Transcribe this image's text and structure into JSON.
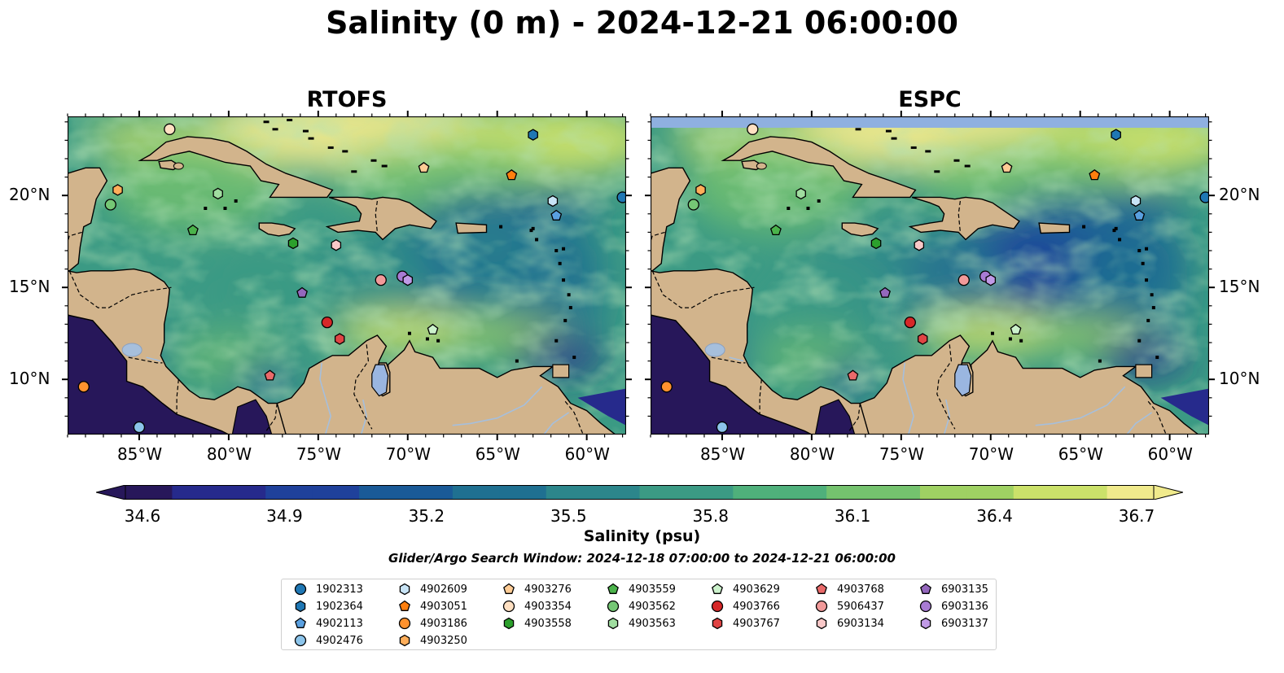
{
  "title": "Salinity (0 m) - 2024-12-21 06:00:00",
  "panels": [
    {
      "name": "RTOFS"
    },
    {
      "name": "ESPC"
    }
  ],
  "longitude_ticks": [
    "85°W",
    "80°W",
    "75°W",
    "70°W",
    "65°W",
    "60°W"
  ],
  "latitude_ticks": [
    "20°N",
    "15°N",
    "10°N"
  ],
  "colorbar": {
    "label": "Salinity (psu)",
    "ticks": [
      "34.6",
      "34.9",
      "35.2",
      "35.5",
      "35.8",
      "36.1",
      "36.4",
      "36.7"
    ],
    "colors": [
      "#27175a",
      "#262a8c",
      "#1f419b",
      "#1a5a97",
      "#1f7091",
      "#2c868b",
      "#3b9a84",
      "#4fb07b",
      "#74c26e",
      "#9fd163",
      "#cbe16a",
      "#f0ea8c"
    ]
  },
  "search_window": "Glider/Argo Search Window: 2024-12-18 07:00:00 to 2024-12-21 06:00:00",
  "land_color": "#d2b48c",
  "missing_data_color": "#8fb0e0",
  "legend": [
    {
      "id": "1902313",
      "color": "#1f77b4",
      "marker": "circle"
    },
    {
      "id": "1902364",
      "color": "#1f77b4",
      "marker": "hexagon"
    },
    {
      "id": "4902113",
      "color": "#5aa0e0",
      "marker": "pentagon"
    },
    {
      "id": "4902476",
      "color": "#8cc4ea",
      "marker": "circle"
    },
    {
      "id": "4902609",
      "color": "#c8e4f6",
      "marker": "hexagon"
    },
    {
      "id": "4903051",
      "color": "#ff7f0e",
      "marker": "pentagon"
    },
    {
      "id": "4903186",
      "color": "#ff922e",
      "marker": "circle"
    },
    {
      "id": "4903250",
      "color": "#ffae5a",
      "marker": "hexagon"
    },
    {
      "id": "4903276",
      "color": "#ffcc95",
      "marker": "pentagon"
    },
    {
      "id": "4903354",
      "color": "#ffe0c2",
      "marker": "circle"
    },
    {
      "id": "4903558",
      "color": "#2ca02c",
      "marker": "hexagon"
    },
    {
      "id": "4903559",
      "color": "#4bb34b",
      "marker": "pentagon"
    },
    {
      "id": "4903562",
      "color": "#75c775",
      "marker": "circle"
    },
    {
      "id": "4903563",
      "color": "#a0dda0",
      "marker": "hexagon"
    },
    {
      "id": "4903629",
      "color": "#ccf2cc",
      "marker": "pentagon"
    },
    {
      "id": "4903766",
      "color": "#d62728",
      "marker": "circle"
    },
    {
      "id": "4903767",
      "color": "#e04444",
      "marker": "hexagon"
    },
    {
      "id": "4903768",
      "color": "#ea6a6a",
      "marker": "pentagon"
    },
    {
      "id": "5906437",
      "color": "#f29a9a",
      "marker": "circle"
    },
    {
      "id": "6903134",
      "color": "#f9c8c8",
      "marker": "hexagon"
    },
    {
      "id": "6903135",
      "color": "#9467bd",
      "marker": "pentagon"
    },
    {
      "id": "6903136",
      "color": "#a87bd4",
      "marker": "circle"
    },
    {
      "id": "6903137",
      "color": "#c09ae6",
      "marker": "hexagon"
    }
  ],
  "floats": [
    {
      "id": "1902313",
      "lon": -58.0,
      "lat": 19.9
    },
    {
      "id": "1902364",
      "lon": -63.0,
      "lat": 23.3
    },
    {
      "id": "4902113",
      "lon": -61.7,
      "lat": 18.9
    },
    {
      "id": "4902476",
      "lon": -85.0,
      "lat": 7.4
    },
    {
      "id": "4902609",
      "lon": -61.9,
      "lat": 19.7
    },
    {
      "id": "4903051",
      "lon": -64.2,
      "lat": 21.1
    },
    {
      "id": "4903186",
      "lon": -88.1,
      "lat": 9.6
    },
    {
      "id": "4903250",
      "lon": -86.2,
      "lat": 20.3
    },
    {
      "id": "4903276",
      "lon": -69.1,
      "lat": 21.5
    },
    {
      "id": "4903354",
      "lon": -83.3,
      "lat": 23.6
    },
    {
      "id": "4903558",
      "lon": -76.4,
      "lat": 17.4
    },
    {
      "id": "4903559",
      "lon": -82.0,
      "lat": 18.1
    },
    {
      "id": "4903562",
      "lon": -86.6,
      "lat": 19.5
    },
    {
      "id": "4903563",
      "lon": -80.6,
      "lat": 20.1
    },
    {
      "id": "4903629",
      "lon": -68.6,
      "lat": 12.7
    },
    {
      "id": "4903766",
      "lon": -74.5,
      "lat": 13.1
    },
    {
      "id": "4903767",
      "lon": -73.8,
      "lat": 12.2
    },
    {
      "id": "4903768",
      "lon": -77.7,
      "lat": 10.2
    },
    {
      "id": "5906437",
      "lon": -71.5,
      "lat": 15.4
    },
    {
      "id": "6903134",
      "lon": -74.0,
      "lat": 17.3
    },
    {
      "id": "6903135",
      "lon": -75.9,
      "lat": 14.7
    },
    {
      "id": "6903136",
      "lon": -70.3,
      "lat": 15.6
    },
    {
      "id": "6903137",
      "lon": -70.0,
      "lat": 15.4
    }
  ]
}
